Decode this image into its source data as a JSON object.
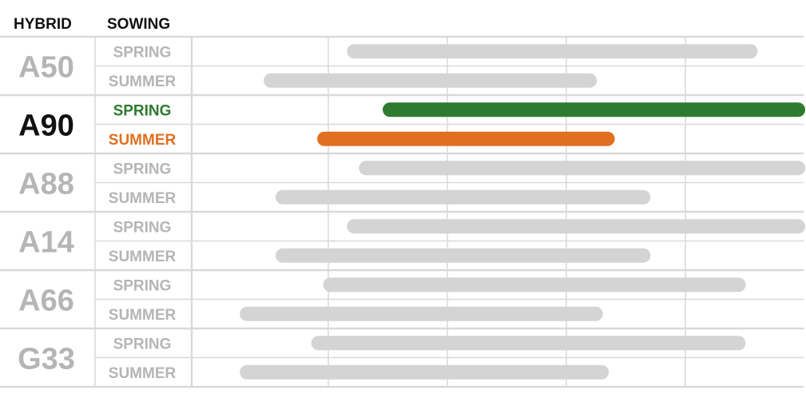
{
  "headers": {
    "hybrid": "HYBRID",
    "sowing": "SOWING"
  },
  "colors": {
    "highlight_spring": "#2e7a2e",
    "highlight_summer": "#e07020",
    "bar_default": "#d4d4d4",
    "label_default": "#b5b5b5",
    "highlight_hybrid": "#111111",
    "grid": "#d9d9d9"
  },
  "chart_data": {
    "type": "bar",
    "orientation": "horizontal-range",
    "categories": [
      "A50",
      "A90",
      "A88",
      "A14",
      "A66",
      "G33"
    ],
    "highlighted": "A90",
    "xlim": [
      0,
      100
    ],
    "grid": true,
    "series": [
      {
        "name": "SPRING",
        "ranges": [
          [
            23,
            92
          ],
          [
            29,
            100
          ],
          [
            25,
            100
          ],
          [
            23,
            100
          ],
          [
            19,
            90
          ],
          [
            17,
            90
          ]
        ]
      },
      {
        "name": "SUMMER",
        "ranges": [
          [
            9,
            65
          ],
          [
            18,
            68
          ],
          [
            11,
            74
          ],
          [
            11,
            74
          ],
          [
            5,
            66
          ],
          [
            5,
            67
          ]
        ]
      }
    ]
  }
}
